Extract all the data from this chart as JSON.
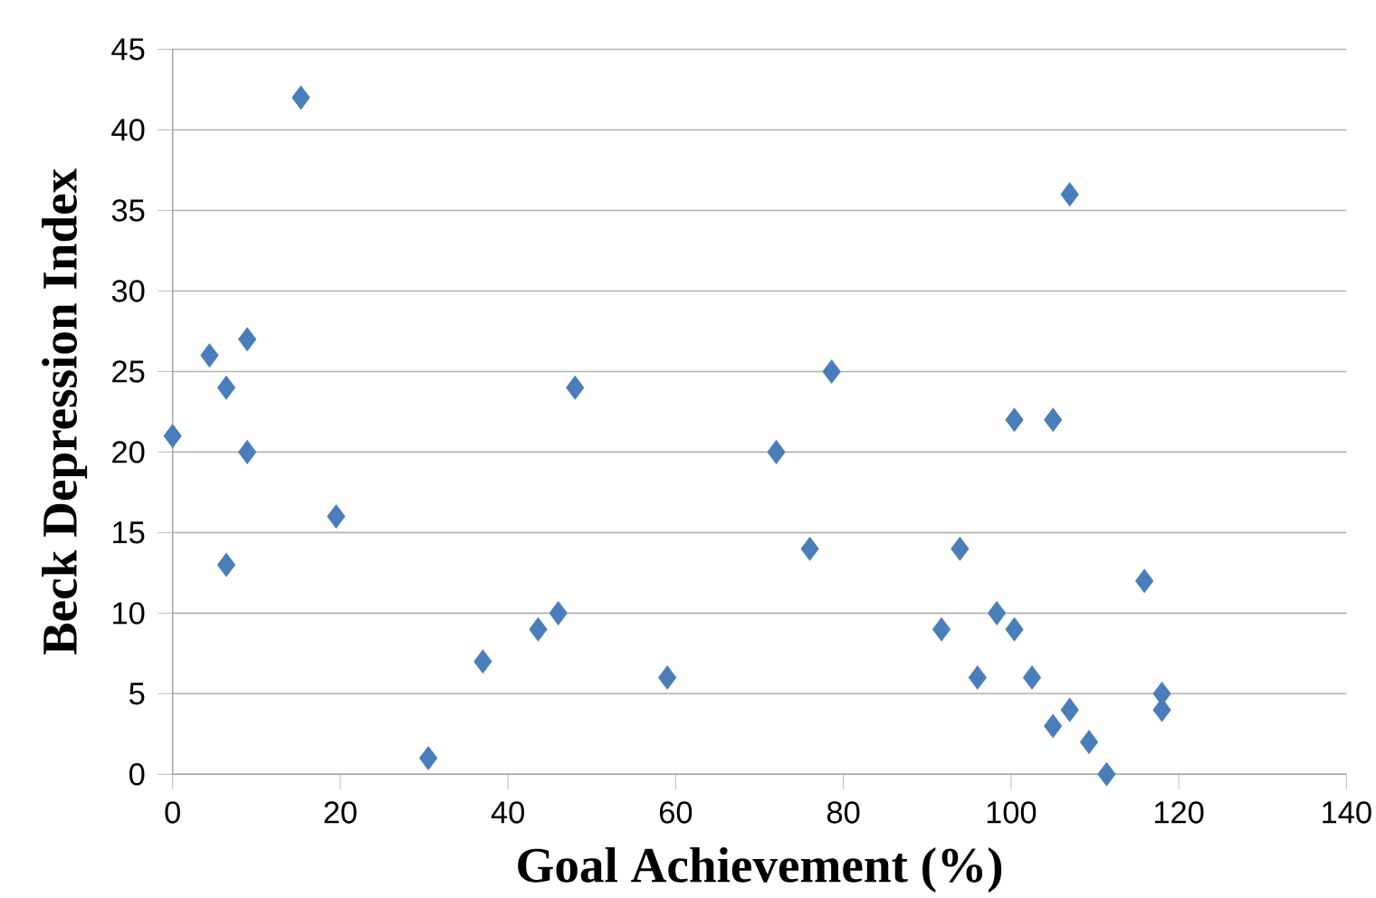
{
  "chart_data": {
    "type": "scatter",
    "xlabel": "Goal Achievement (%)",
    "ylabel": "Beck Depression Index",
    "x": [
      0,
      4.4,
      6.4,
      6.4,
      8.9,
      8.9,
      15.3,
      19.5,
      30.5,
      37,
      43.6,
      46,
      48,
      59,
      72,
      76,
      78.6,
      91.7,
      93.9,
      96,
      98.3,
      100.4,
      100.4,
      102.5,
      105,
      105,
      107,
      107,
      109.3,
      111.4,
      115.9,
      118,
      118
    ],
    "series": [
      {
        "color": "#4a7ebb",
        "values": [
          21,
          26,
          24,
          13,
          27,
          20,
          42,
          16,
          1,
          7,
          9,
          10,
          24,
          6,
          20,
          14,
          25,
          9,
          14,
          6,
          10,
          9,
          22,
          6,
          3,
          22,
          4,
          36,
          2,
          0,
          12,
          5,
          4
        ]
      }
    ],
    "xlim": [
      0,
      140
    ],
    "ylim": [
      0,
      45
    ],
    "xticks": [
      0,
      20,
      40,
      60,
      80,
      100,
      120,
      140
    ],
    "yticks": [
      0,
      5,
      10,
      15,
      20,
      25,
      30,
      35,
      40,
      45
    ],
    "grid": "y",
    "marker": "diamond"
  }
}
